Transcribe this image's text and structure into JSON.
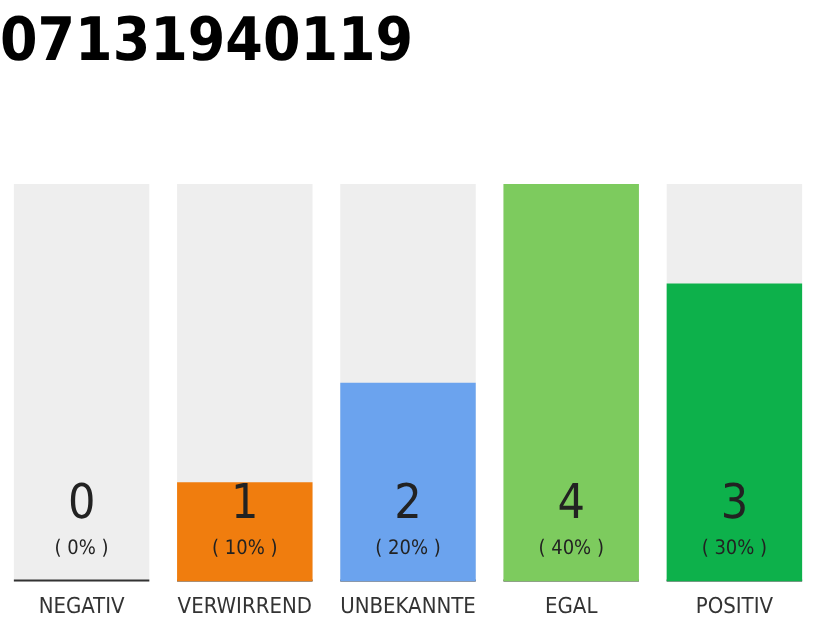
{
  "chart_data": {
    "type": "bar",
    "title": "07131940119",
    "categories": [
      "NEGATIV",
      "VERWIRREND",
      "UNBEKANNTE",
      "EGAL",
      "POSITIV"
    ],
    "values": [
      0,
      1,
      2,
      4,
      3
    ],
    "colors": [
      "#333333",
      "#f07d0e",
      "#6ba3ee",
      "#7dcb5e",
      "#0db14b"
    ],
    "ylim": [
      0,
      4
    ],
    "data_labels": true,
    "grid": false,
    "legend": false,
    "tick_labels": "x",
    "annotations": [
      "( 0% )",
      "( 10% )",
      "( 20% )",
      "( 40% )",
      "( 30% )"
    ]
  }
}
